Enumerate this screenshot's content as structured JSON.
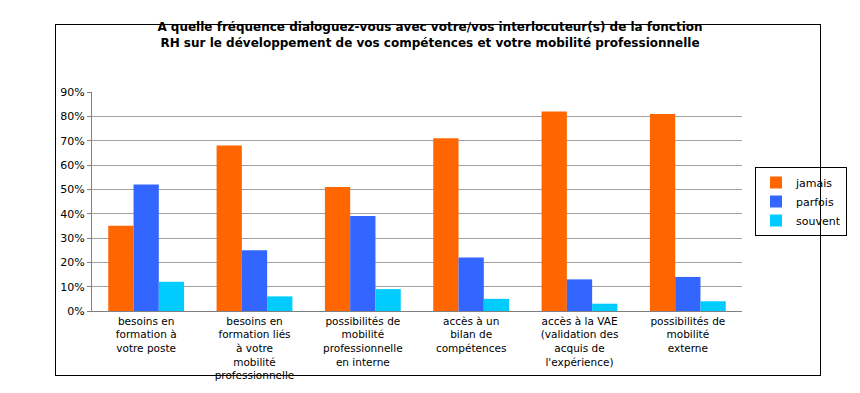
{
  "chart_data": {
    "type": "bar",
    "title": "A quelle fréquence dialoguez-vous avec votre/vos interlocuteur(s) de la fonction RH sur le développement de vos compétences et votre mobilité professionnelle",
    "categories": [
      "besoins en formation à votre poste",
      "besoins en formation liés à votre mobilité professionnelle",
      "possibilités de mobilité professionnelle en interne",
      "accès à un bilan de compétences",
      "accès à la VAE (validation des acquis de l'expérience)",
      "possibilités de mobilité externe"
    ],
    "series": [
      {
        "name": "jamais",
        "color": "#ff6600",
        "values": [
          35,
          68,
          51,
          71,
          82,
          81
        ]
      },
      {
        "name": "parfois",
        "color": "#3366ff",
        "values": [
          52,
          25,
          39,
          22,
          13,
          14
        ]
      },
      {
        "name": "souvent",
        "color": "#00ccff",
        "values": [
          12,
          6,
          9,
          5,
          3,
          4
        ]
      }
    ],
    "ylim": [
      0,
      90
    ],
    "yticks": [
      {
        "value": 0,
        "label": "0%"
      },
      {
        "value": 10,
        "label": "10%"
      },
      {
        "value": 20,
        "label": "20%"
      },
      {
        "value": 30,
        "label": "30%"
      },
      {
        "value": 40,
        "label": "40%"
      },
      {
        "value": 50,
        "label": "50%"
      },
      {
        "value": 60,
        "label": "60%"
      },
      {
        "value": 70,
        "label": "70%"
      },
      {
        "value": 80,
        "label": "80%"
      },
      {
        "value": 90,
        "label": "90%"
      }
    ],
    "grid": true,
    "legend": "right"
  }
}
